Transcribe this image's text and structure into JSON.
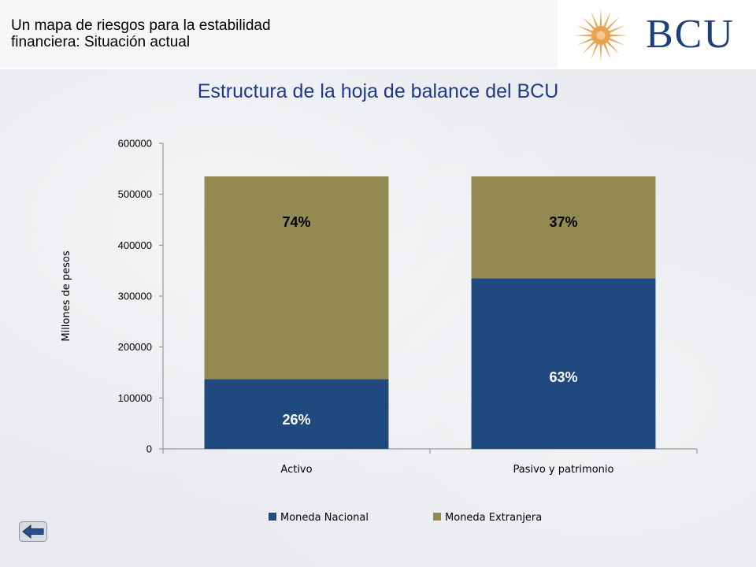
{
  "header": {
    "title_line1": "Un mapa de riesgos para la estabilidad",
    "title_line2": "financiera: Situación actual",
    "logo_text": "BCU"
  },
  "colors": {
    "moneda_nacional": "#204a7f",
    "moneda_extranjera": "#938953",
    "title": "#1f3a8c"
  },
  "chart_data": {
    "type": "bar",
    "stacked": true,
    "title": "Estructura de la hoja de balance del BCU",
    "ylabel": "Millones de pesos",
    "xlabel": "",
    "ylim": [
      0,
      600000
    ],
    "yticks": [
      0,
      100000,
      200000,
      300000,
      400000,
      500000,
      600000
    ],
    "categories": [
      "Activo",
      "Pasivo y patrimonio"
    ],
    "series": [
      {
        "name": "Moneda Nacional",
        "values": [
          137000,
          335000
        ],
        "labels": [
          "26%",
          "63%"
        ]
      },
      {
        "name": "Moneda Extranjera",
        "values": [
          398000,
          200000
        ],
        "labels": [
          "74%",
          "37%"
        ]
      }
    ],
    "grid": false,
    "legend": "bottom"
  }
}
